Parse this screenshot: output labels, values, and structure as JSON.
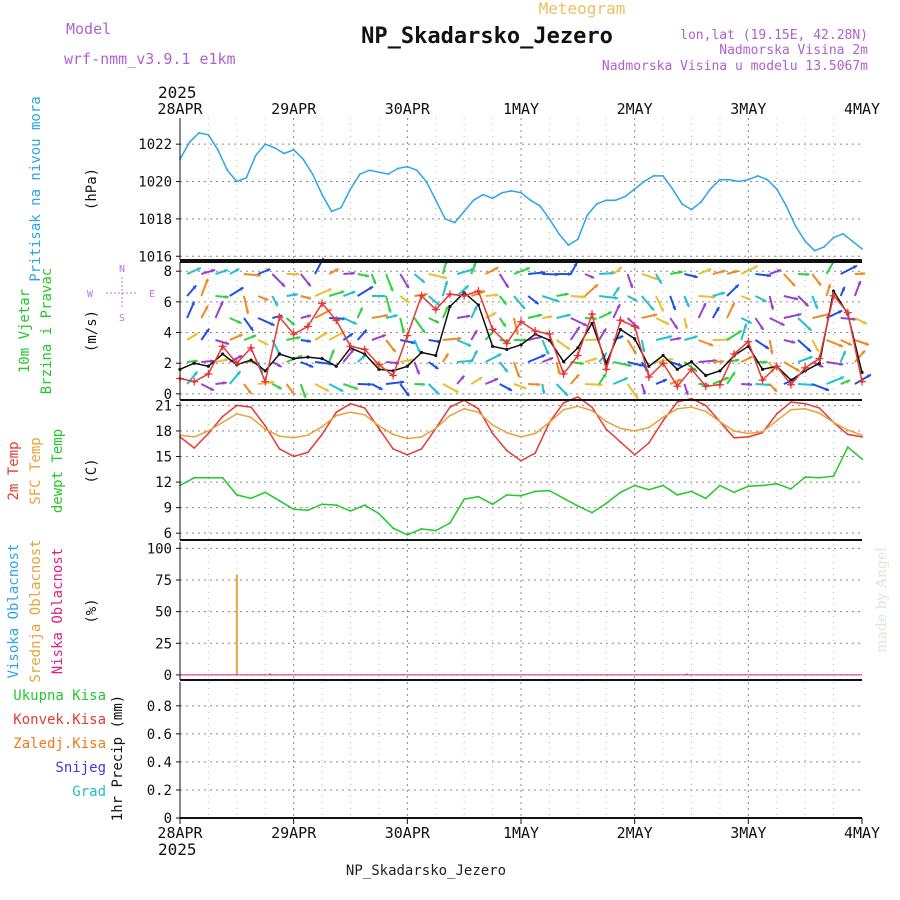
{
  "header": {
    "model_label": "Model",
    "model_value": "wrf-nmm_v3.9.1 e1km",
    "chart_kind": "Meteogram",
    "title": "NP_Skadarsko_Jezero",
    "coords": "lon,lat (19.15E, 42.28N)",
    "elevation": "Nadmorska Visina 2m",
    "model_elevation": "Nadmorska Visina u modelu 13.5067m",
    "year_top": "2025",
    "year_bottom": "2025",
    "footer_title": "NP_Skadarsko_Jezero",
    "credit": "made by Angel",
    "days": [
      "28APR",
      "29APR",
      "30APR",
      "1MAY",
      "2MAY",
      "3MAY",
      "4MAY"
    ]
  },
  "colors": {
    "pressure": "#2aa6e6",
    "temp2m": "#e53935",
    "sfc_temp": "#e8a23a",
    "dewpoint": "#22c92a",
    "wind_label": "#22c92a",
    "high_cloud": "#2aa6e6",
    "mid_cloud": "#e8a23a",
    "low_cloud": "#e0207a",
    "total_precip": "#22c92a",
    "conv_precip": "#e53935",
    "frozen_precip": "#f07a1a",
    "snow": "#3a3ae6",
    "hail": "#20c0c0",
    "title_purple": "#b060d0"
  },
  "chart_data": [
    {
      "type": "line",
      "panel": "pressure",
      "ylabel_colored": [
        "Pritisak na nivou mora"
      ],
      "unit": "(hPa)",
      "x_unit": "hours since 28APR 00",
      "ylim": [
        1015.8,
        1023.4
      ],
      "yticks": [
        1016,
        1018,
        1020,
        1022
      ],
      "grid": true,
      "series": [
        {
          "x": [
            0,
            2,
            4,
            6,
            8,
            10,
            12,
            14,
            16,
            18,
            20,
            22,
            24,
            26,
            28,
            30,
            32,
            34,
            36,
            38,
            40,
            42,
            44,
            46,
            48,
            50,
            52,
            54,
            56,
            58,
            60,
            62,
            64,
            66,
            68,
            70,
            72,
            74,
            76,
            78,
            80,
            82,
            84,
            86,
            88,
            90,
            92,
            94,
            96,
            98,
            100,
            102,
            104,
            106,
            108,
            110,
            112,
            114,
            116,
            118,
            120,
            122,
            124,
            126,
            128,
            130,
            132,
            134,
            136,
            138,
            140,
            142,
            144
          ],
          "values": [
            1021.2,
            1022.1,
            1022.6,
            1022.5,
            1021.7,
            1020.6,
            1020.0,
            1020.2,
            1021.4,
            1022.0,
            1021.8,
            1021.5,
            1021.7,
            1021.2,
            1020.4,
            1019.3,
            1018.4,
            1018.6,
            1019.6,
            1020.4,
            1020.6,
            1020.5,
            1020.4,
            1020.7,
            1020.8,
            1020.6,
            1020.0,
            1019.0,
            1018.0,
            1017.8,
            1018.4,
            1019.0,
            1019.3,
            1019.1,
            1019.4,
            1019.5,
            1019.4,
            1019.0,
            1018.7,
            1018.0,
            1017.2,
            1016.6,
            1016.9,
            1018.2,
            1018.8,
            1019.0,
            1019.0,
            1019.2,
            1019.6,
            1020.0,
            1020.3,
            1020.3,
            1019.6,
            1018.8,
            1018.5,
            1018.9,
            1019.6,
            1020.1,
            1020.1,
            1020.0,
            1020.1,
            1020.3,
            1020.1,
            1019.6,
            1018.7,
            1017.6,
            1016.8,
            1016.3,
            1016.5,
            1017.0,
            1017.2,
            1016.8,
            1016.4
          ]
        }
      ]
    },
    {
      "type": "line",
      "panel": "wind",
      "ylabel_colored": [
        "10m Vjetar",
        "Brzina i Pravac"
      ],
      "unit": "(m/s)",
      "compass": [
        "N",
        "W",
        "E",
        "S"
      ],
      "ylim": [
        -0.4,
        8.6
      ],
      "yticks": [
        0,
        2,
        4,
        6,
        8
      ],
      "grid": true,
      "series": [
        {
          "name": "wind speed",
          "x": [
            0,
            3,
            6,
            9,
            12,
            15,
            18,
            21,
            24,
            27,
            30,
            33,
            36,
            39,
            42,
            45,
            48,
            51,
            54,
            57,
            60,
            63,
            66,
            69,
            72,
            75,
            78,
            81,
            84,
            87,
            90,
            93,
            96,
            99,
            102,
            105,
            108,
            111,
            114,
            117,
            120,
            123,
            126,
            129,
            132,
            135,
            138,
            141,
            144
          ],
          "values": [
            1.6,
            2.0,
            1.8,
            2.6,
            1.9,
            2.2,
            1.5,
            2.6,
            2.3,
            2.4,
            2.3,
            1.8,
            3.0,
            2.6,
            1.6,
            1.5,
            1.8,
            2.7,
            2.5,
            5.7,
            6.6,
            5.8,
            3.1,
            2.9,
            3.2,
            3.9,
            3.5,
            2.1,
            3.0,
            4.6,
            2.0,
            4.2,
            3.6,
            1.8,
            2.5,
            1.6,
            2.1,
            1.2,
            1.5,
            2.5,
            3.1,
            1.6,
            1.8,
            0.9,
            1.5,
            2.0,
            6.7,
            5.2,
            1.4
          ]
        },
        {
          "name": "wind gust",
          "x": [
            0,
            3,
            6,
            9,
            12,
            15,
            18,
            21,
            24,
            27,
            30,
            33,
            36,
            39,
            42,
            45,
            48,
            51,
            54,
            57,
            60,
            63,
            66,
            69,
            72,
            75,
            78,
            81,
            84,
            87,
            90,
            93,
            96,
            99,
            102,
            105,
            108,
            111,
            114,
            117,
            120,
            123,
            126,
            129,
            132,
            135,
            138,
            141,
            144
          ],
          "values": [
            1.0,
            0.8,
            1.3,
            3.1,
            2.0,
            3.0,
            0.8,
            5.0,
            3.9,
            4.4,
            5.9,
            4.8,
            3.1,
            2.9,
            1.9,
            1.2,
            3.8,
            6.4,
            5.5,
            6.5,
            6.4,
            6.7,
            4.2,
            3.3,
            4.7,
            4.1,
            3.9,
            1.3,
            2.5,
            5.2,
            1.6,
            4.8,
            4.4,
            1.1,
            2.0,
            0.5,
            1.6,
            0.5,
            0.6,
            2.6,
            3.4,
            0.9,
            1.8,
            0.6,
            1.7,
            2.3,
            6.4,
            5.3,
            0.8
          ]
        }
      ]
    },
    {
      "type": "line",
      "panel": "temperature",
      "ylabel_colored": [
        "2m Temp",
        "SFC Temp",
        "dewpt Temp"
      ],
      "unit": "(C)",
      "ylim": [
        5.2,
        21.4
      ],
      "yticks": [
        6,
        9,
        12,
        15,
        18,
        21
      ],
      "grid": true,
      "series": [
        {
          "name": "2m Temp",
          "x": [
            0,
            3,
            6,
            9,
            12,
            15,
            18,
            21,
            24,
            27,
            30,
            33,
            36,
            39,
            42,
            45,
            48,
            51,
            54,
            57,
            60,
            63,
            66,
            69,
            72,
            75,
            78,
            81,
            84,
            87,
            90,
            93,
            96,
            99,
            102,
            105,
            108,
            111,
            114,
            117,
            120,
            123,
            126,
            129,
            132,
            135,
            138,
            141,
            144
          ],
          "values": [
            17.3,
            16.0,
            17.7,
            19.7,
            21.0,
            20.8,
            18.6,
            15.9,
            15.0,
            15.5,
            17.6,
            20.2,
            21.2,
            20.7,
            18.3,
            15.9,
            15.2,
            15.9,
            18.3,
            20.8,
            21.6,
            20.6,
            17.7,
            15.7,
            14.5,
            15.4,
            19.0,
            21.3,
            22.0,
            20.8,
            18.2,
            16.7,
            15.2,
            16.6,
            19.2,
            21.4,
            21.8,
            21.0,
            19.1,
            17.2,
            17.3,
            17.8,
            20.0,
            21.4,
            21.2,
            20.7,
            19.0,
            17.6,
            17.3
          ]
        },
        {
          "name": "SFC Temp",
          "x": [
            0,
            3,
            6,
            9,
            12,
            15,
            18,
            21,
            24,
            27,
            30,
            33,
            36,
            39,
            42,
            45,
            48,
            51,
            54,
            57,
            60,
            63,
            66,
            69,
            72,
            75,
            78,
            81,
            84,
            87,
            90,
            93,
            96,
            99,
            102,
            105,
            108,
            111,
            114,
            117,
            120,
            123,
            126,
            129,
            132,
            135,
            138,
            141,
            144
          ],
          "values": [
            17.5,
            17.3,
            18.0,
            19.0,
            20.0,
            19.6,
            18.2,
            17.4,
            17.2,
            17.5,
            18.5,
            19.8,
            20.2,
            19.9,
            18.6,
            17.6,
            17.1,
            17.3,
            18.3,
            19.8,
            20.6,
            20.2,
            18.7,
            17.8,
            17.3,
            17.7,
            19.0,
            20.5,
            20.9,
            20.4,
            19.1,
            18.3,
            18.0,
            18.4,
            19.6,
            20.6,
            20.8,
            20.3,
            19.1,
            18.0,
            17.7,
            17.9,
            19.2,
            20.5,
            20.6,
            20.1,
            19.0,
            18.1,
            17.5
          ]
        },
        {
          "name": "dewpt Temp",
          "x": [
            0,
            3,
            6,
            9,
            12,
            15,
            18,
            21,
            24,
            27,
            30,
            33,
            36,
            39,
            42,
            45,
            48,
            51,
            54,
            57,
            60,
            63,
            66,
            69,
            72,
            75,
            78,
            81,
            84,
            87,
            90,
            93,
            96,
            99,
            102,
            105,
            108,
            111,
            114,
            117,
            120,
            123,
            126,
            129,
            132,
            135,
            138,
            141,
            144
          ],
          "values": [
            11.6,
            12.5,
            12.5,
            12.5,
            10.5,
            10.1,
            10.8,
            9.8,
            8.8,
            8.7,
            9.4,
            9.3,
            8.6,
            9.3,
            8.3,
            6.6,
            5.8,
            6.5,
            6.3,
            7.2,
            10.0,
            10.3,
            9.4,
            10.5,
            10.4,
            10.9,
            11.0,
            10.1,
            9.2,
            8.4,
            9.5,
            10.8,
            11.6,
            11.1,
            11.6,
            10.5,
            10.9,
            10.1,
            11.6,
            10.8,
            11.5,
            11.6,
            11.8,
            11.2,
            12.6,
            12.5,
            12.7,
            16.1,
            14.7
          ]
        }
      ]
    },
    {
      "type": "bar",
      "panel": "cloud",
      "ylabel_colored": [
        "Visoka Oblacnost",
        "Srednja Oblacnost",
        "Niska Oblacnost"
      ],
      "unit": "(%)",
      "ylim": [
        -4,
        105
      ],
      "yticks": [
        0,
        25,
        50,
        75,
        100
      ],
      "grid": true,
      "series": [
        {
          "name": "Visoka Oblacnost",
          "x": [
            14,
            80,
            107
          ],
          "values": [
            0.5,
            0.4,
            1.2
          ]
        },
        {
          "name": "Srednja Oblacnost",
          "x": [
            12,
            19,
            107
          ],
          "values": [
            79,
            1.5,
            1.0
          ]
        },
        {
          "name": "Niska Oblacnost",
          "x": [
            12
          ],
          "values": [
            0.3
          ]
        }
      ]
    },
    {
      "type": "bar",
      "panel": "precip",
      "ylabel_colored": [
        "Ukupna Kisa",
        "Konvek.Kisa",
        "Zaledj.Kisa",
        "Snijeg",
        "Grad"
      ],
      "unit": "1hr Precip (mm)",
      "ylim": [
        0,
        0.97
      ],
      "yticks": [
        0,
        0.2,
        0.4,
        0.6,
        0.8
      ],
      "grid": true,
      "series": [
        {
          "name": "Ukupna Kisa",
          "x": [],
          "values": []
        }
      ]
    }
  ]
}
